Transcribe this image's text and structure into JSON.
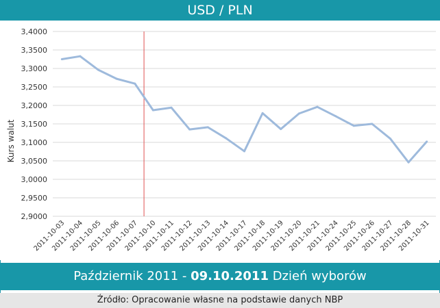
{
  "title": "USD / PLN",
  "caption": {
    "prefix": "Październik 2011 - ",
    "date": "09.10.2011",
    "suffix": " Dzień wyborów"
  },
  "source": "Źródło: Opracowanie własne na podstawie danych NBP",
  "colors": {
    "accent": "#1897a8",
    "line": "#9ebadc",
    "marker": "#e05050",
    "grid": "#d9d9d9"
  },
  "chart_data": {
    "type": "line",
    "ylabel": "Kurs walut",
    "ylim": [
      2.9,
      3.4
    ],
    "yticks": [
      "2,9000",
      "2,9500",
      "3,0000",
      "3,0500",
      "3,1000",
      "3,1500",
      "3,2000",
      "3,2500",
      "3,3000",
      "3,3500",
      "3,4000"
    ],
    "categories": [
      "2011-10-03",
      "2011-10-04",
      "2011-10-05",
      "2011-10-06",
      "2011-10-07",
      "2011-10-10",
      "2011-10-11",
      "2011-10-12",
      "2011-10-13",
      "2011-10-14",
      "2011-10-17",
      "2011-10-18",
      "2011-10-19",
      "2011-10-20",
      "2011-10-21",
      "2011-10-24",
      "2011-10-25",
      "2011-10-26",
      "2011-10-27",
      "2011-10-28",
      "2011-10-31"
    ],
    "values": [
      3.325,
      3.333,
      3.296,
      3.272,
      3.259,
      3.187,
      3.194,
      3.135,
      3.141,
      3.111,
      3.076,
      3.179,
      3.136,
      3.178,
      3.196,
      3.171,
      3.145,
      3.15,
      3.11,
      3.046,
      3.102
    ],
    "marker_after_category": "2011-10-07",
    "grid": true,
    "legend": "none"
  }
}
